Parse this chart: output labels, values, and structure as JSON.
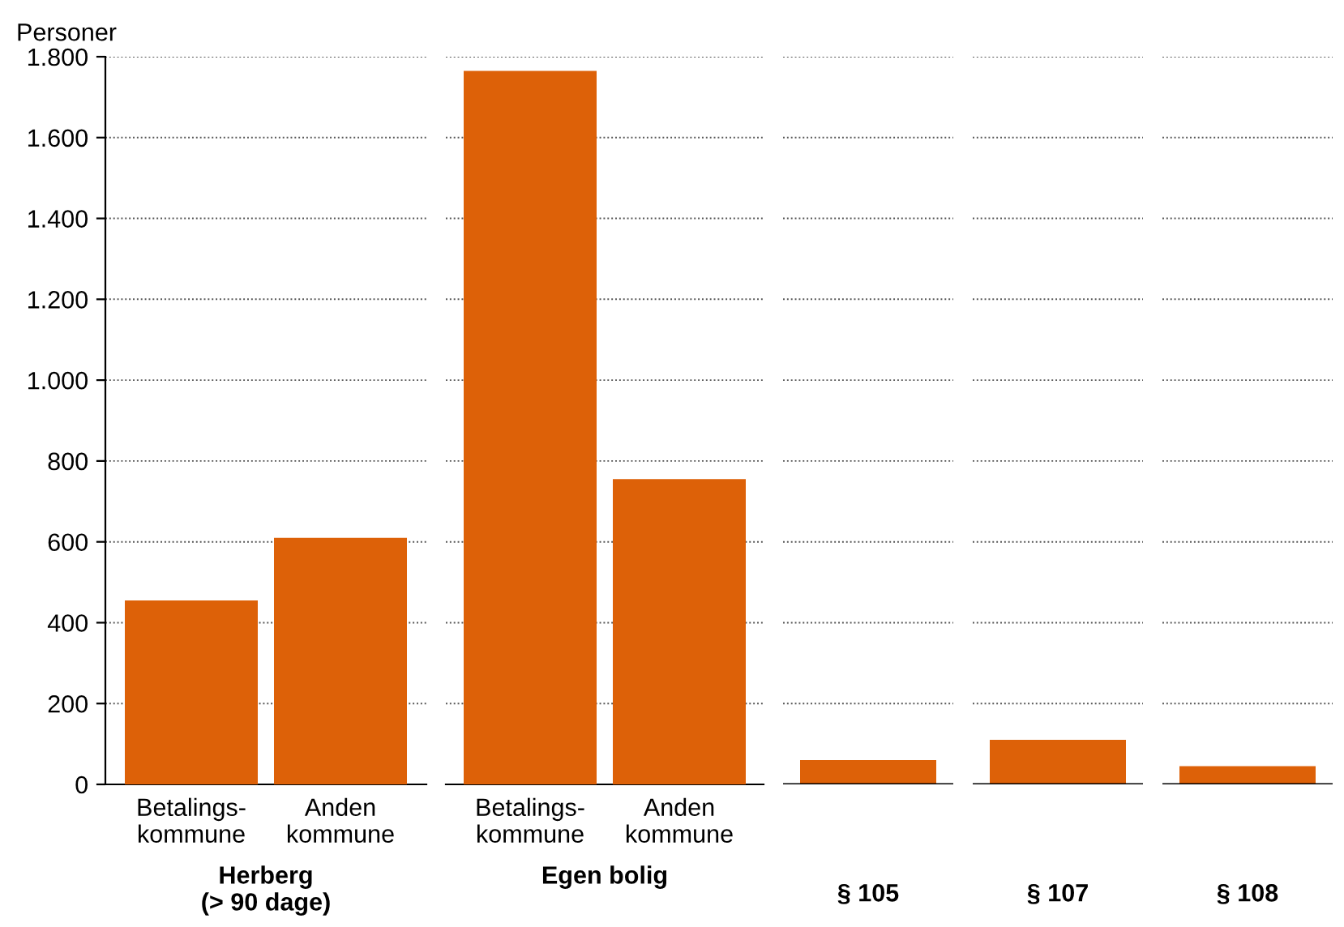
{
  "chart_data": [
    {
      "type": "bar",
      "ylabel": "Personer",
      "xlabel": "Herberg\n(> 90 dage)",
      "categories": [
        "Betalings-\nkommune",
        "Anden\nkommune"
      ],
      "values": [
        455,
        610
      ],
      "color": "#dd6108",
      "ylim": [
        0,
        1800
      ],
      "yticks": [
        0,
        200,
        400,
        600,
        800,
        {
          "value": 1000,
          "label": "1.000"
        },
        {
          "value": 1200,
          "label": "1.200"
        },
        {
          "value": 1400,
          "label": "1.400"
        },
        {
          "value": 1600,
          "label": "1.600"
        },
        {
          "value": 1800,
          "label": "1.800"
        }
      ],
      "grid": "y"
    },
    {
      "type": "bar",
      "xlabel": "Egen bolig",
      "categories": [
        "Betalings-\nkommune",
        "Anden\nkommune"
      ],
      "values": [
        1765,
        755
      ],
      "color": "#dd6108",
      "ylim": [
        0,
        1800
      ],
      "tick_labels": "x",
      "grid": "y"
    },
    {
      "type": "bar",
      "categories": [
        "§ 105",
        "§ 107",
        "§ 108"
      ],
      "values": [
        60,
        110,
        45
      ],
      "color": "#dd6108",
      "ylim": [
        0,
        1800
      ],
      "tick_labels": "x",
      "grid": "y"
    }
  ]
}
